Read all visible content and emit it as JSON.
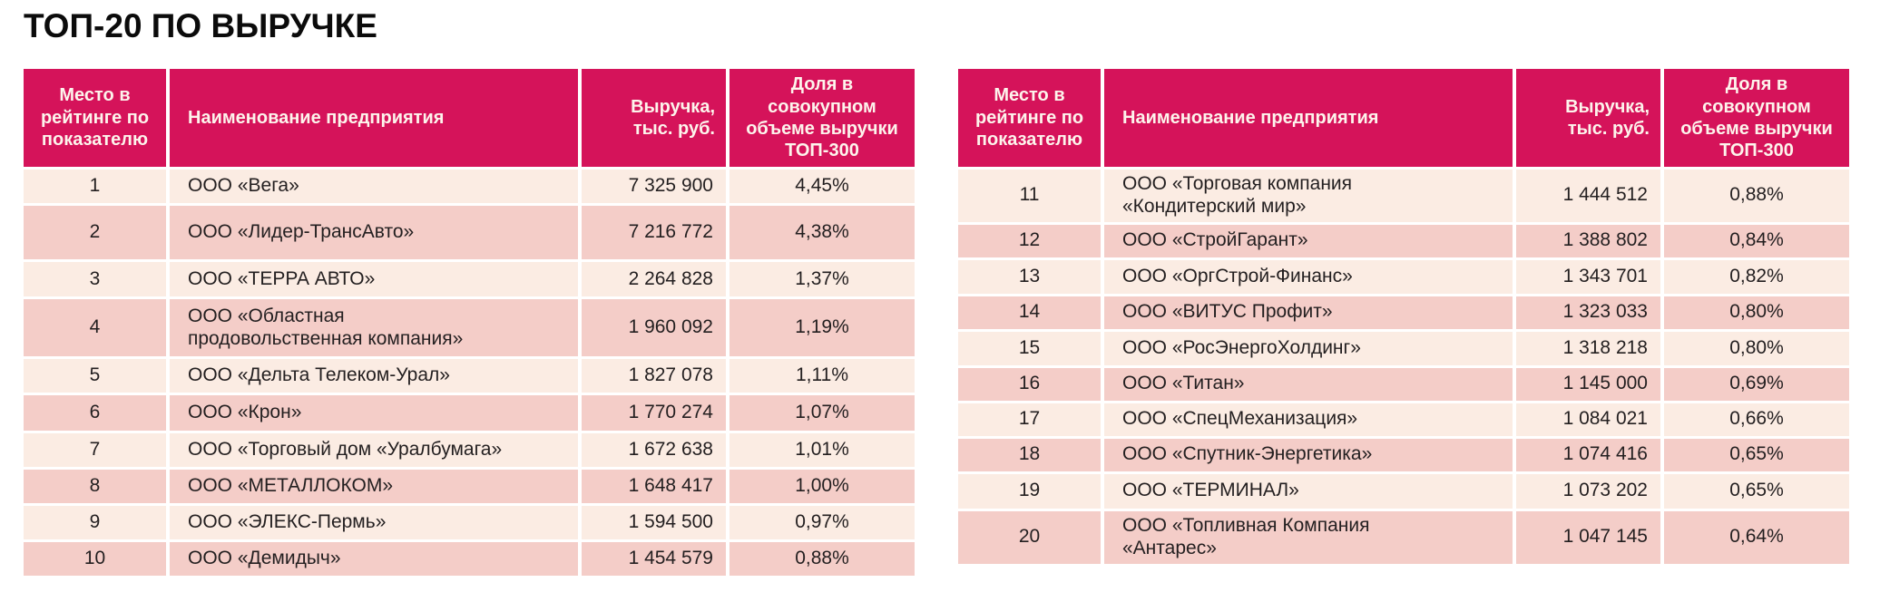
{
  "page_title": "ТОП-20 ПО ВЫРУЧКЕ",
  "colors": {
    "header_bg": "#d5135a",
    "row_light": "#fbece3",
    "row_dark": "#f4cdc8",
    "header_text": "#fdf4ec",
    "body_text": "#231f20"
  },
  "columns": [
    "Место в\nрейтинге по\nпоказателю",
    "Наименование предприятия",
    "Выручка,\nтыс. руб.",
    "Доля в\nсовокупном\nобъеме выручки\nТОП-300"
  ],
  "tables": {
    "left": {
      "rows": [
        {
          "rank": "1",
          "name": "ООО «Вега»",
          "revenue": "7 325 900",
          "share": "4,45%"
        },
        {
          "rank": "2",
          "name": "ООО «Лидер-ТрансАвто»",
          "revenue": "7 216 772",
          "share": "4,38%"
        },
        {
          "rank": "3",
          "name": "ООО «ТЕРРА АВТО»",
          "revenue": "2 264 828",
          "share": "1,37%"
        },
        {
          "rank": "4",
          "name": "ООО «Областная\nпродовольственная компания»",
          "revenue": "1 960 092",
          "share": "1,19%"
        },
        {
          "rank": "5",
          "name": "ООО «Дельта Телеком-Урал»",
          "revenue": "1 827 078",
          "share": "1,11%"
        },
        {
          "rank": "6",
          "name": "ООО «Крон»",
          "revenue": "1 770 274",
          "share": "1,07%"
        },
        {
          "rank": "7",
          "name": "ООО «Торговый дом «Уралбумага»",
          "revenue": "1 672 638",
          "share": "1,01%"
        },
        {
          "rank": "8",
          "name": "ООО «МЕТАЛЛОКОМ»",
          "revenue": "1 648 417",
          "share": "1,00%"
        },
        {
          "rank": "9",
          "name": "ООО «ЭЛЕКС-Пермь»",
          "revenue": "1 594 500",
          "share": "0,97%"
        },
        {
          "rank": "10",
          "name": "ООО «Демидыч»",
          "revenue": "1 454 579",
          "share": "0,88%"
        }
      ]
    },
    "right": {
      "rows": [
        {
          "rank": "11",
          "name": "ООО «Торговая компания\n«Кондитерский мир»",
          "revenue": "1 444 512",
          "share": "0,88%"
        },
        {
          "rank": "12",
          "name": "ООО «СтройГарант»",
          "revenue": "1 388 802",
          "share": "0,84%"
        },
        {
          "rank": "13",
          "name": "ООО «ОргСтрой-Финанс»",
          "revenue": "1 343 701",
          "share": "0,82%"
        },
        {
          "rank": "14",
          "name": "ООО «ВИТУС Профит»",
          "revenue": "1 323 033",
          "share": "0,80%"
        },
        {
          "rank": "15",
          "name": "ООО «РосЭнергоХолдинг»",
          "revenue": "1 318 218",
          "share": "0,80%"
        },
        {
          "rank": "16",
          "name": "ООО «Титан»",
          "revenue": "1 145 000",
          "share": "0,69%"
        },
        {
          "rank": "17",
          "name": "ООО «СпецМеханизация»",
          "revenue": "1 084 021",
          "share": "0,66%"
        },
        {
          "rank": "18",
          "name": "ООО «Спутник-Энергетика»",
          "revenue": "1 074 416",
          "share": "0,65%"
        },
        {
          "rank": "19",
          "name": "ООО «ТЕРМИНАЛ»",
          "revenue": "1 073 202",
          "share": "0,65%"
        },
        {
          "rank": "20",
          "name": "ООО «Топливная Компания\n«Антарес»",
          "revenue": "1 047 145",
          "share": "0,64%"
        }
      ]
    }
  }
}
